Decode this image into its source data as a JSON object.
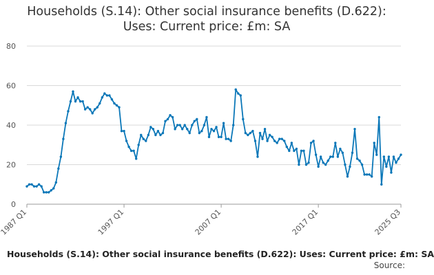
{
  "header": {
    "title_line1": "Households (S.14): Other social insurance benefits (D.622):",
    "title_line2": "Uses: Current price: £m: SA"
  },
  "footer": {
    "title": "Households (S.14): Other social insurance benefits (D.622): Uses: Current price: £m: SA",
    "source": "Source:"
  },
  "colors": {
    "series": "#0a77b8",
    "grid": "#d9d9d9",
    "axis": "#9a9a9a"
  },
  "chart_data": {
    "type": "line",
    "title": "Households (S.14): Other social insurance benefits (D.622): Uses: Current price: £m: SA",
    "xlabel": "",
    "ylabel": "",
    "ylim": [
      0,
      80
    ],
    "yticks": [
      0,
      20,
      40,
      60,
      80
    ],
    "xlim": [
      "1987 Q1",
      "2025 Q3"
    ],
    "xticks": [
      "1987 Q1",
      "1997 Q1",
      "2007 Q1",
      "2017 Q1",
      "2025 Q3"
    ],
    "grid": true,
    "legend": "none",
    "series": [
      {
        "x": [
          "1987 Q1",
          "1987 Q2",
          "1987 Q3",
          "1987 Q4",
          "1988 Q1",
          "1988 Q2",
          "1988 Q3",
          "1988 Q4",
          "1989 Q1",
          "1989 Q2",
          "1989 Q3",
          "1989 Q4",
          "1990 Q1",
          "1990 Q2",
          "1990 Q3",
          "1990 Q4",
          "1991 Q1",
          "1991 Q2",
          "1991 Q3",
          "1991 Q4",
          "1992 Q1",
          "1992 Q2",
          "1992 Q3",
          "1992 Q4",
          "1993 Q1",
          "1993 Q2",
          "1993 Q3",
          "1993 Q4",
          "1994 Q1",
          "1994 Q2",
          "1994 Q3",
          "1994 Q4",
          "1995 Q1",
          "1995 Q2",
          "1995 Q3",
          "1995 Q4",
          "1996 Q1",
          "1996 Q2",
          "1996 Q3",
          "1996 Q4",
          "1997 Q1",
          "1997 Q2",
          "1997 Q3",
          "1997 Q4",
          "1998 Q1",
          "1998 Q2",
          "1998 Q3",
          "1998 Q4",
          "1999 Q1",
          "1999 Q2",
          "1999 Q3",
          "1999 Q4",
          "2000 Q1",
          "2000 Q2",
          "2000 Q3",
          "2000 Q4",
          "2001 Q1",
          "2001 Q2",
          "2001 Q3",
          "2001 Q4",
          "2002 Q1",
          "2002 Q2",
          "2002 Q3",
          "2002 Q4",
          "2003 Q1",
          "2003 Q2",
          "2003 Q3",
          "2003 Q4",
          "2004 Q1",
          "2004 Q2",
          "2004 Q3",
          "2004 Q4",
          "2005 Q1",
          "2005 Q2",
          "2005 Q3",
          "2005 Q4",
          "2006 Q1",
          "2006 Q2",
          "2006 Q3",
          "2006 Q4",
          "2007 Q1",
          "2007 Q2",
          "2007 Q3",
          "2007 Q4",
          "2008 Q1",
          "2008 Q2",
          "2008 Q3",
          "2008 Q4",
          "2009 Q1",
          "2009 Q2",
          "2009 Q3",
          "2009 Q4",
          "2010 Q1",
          "2010 Q2",
          "2010 Q3",
          "2010 Q4",
          "2011 Q1",
          "2011 Q2",
          "2011 Q3",
          "2011 Q4",
          "2012 Q1",
          "2012 Q2",
          "2012 Q3",
          "2012 Q4",
          "2013 Q1",
          "2013 Q2",
          "2013 Q3",
          "2013 Q4",
          "2014 Q1",
          "2014 Q2",
          "2014 Q3",
          "2014 Q4",
          "2015 Q1",
          "2015 Q2",
          "2015 Q3",
          "2015 Q4",
          "2016 Q1",
          "2016 Q2",
          "2016 Q3",
          "2016 Q4",
          "2017 Q1",
          "2017 Q2",
          "2017 Q3",
          "2017 Q4",
          "2018 Q1",
          "2018 Q2",
          "2018 Q3",
          "2018 Q4",
          "2019 Q1",
          "2019 Q2",
          "2019 Q3",
          "2019 Q4",
          "2020 Q1",
          "2020 Q2",
          "2020 Q3",
          "2020 Q4",
          "2021 Q1",
          "2021 Q2",
          "2021 Q3",
          "2021 Q4",
          "2022 Q1",
          "2022 Q2",
          "2022 Q3",
          "2022 Q4",
          "2023 Q1",
          "2023 Q2",
          "2023 Q3",
          "2023 Q4",
          "2024 Q1",
          "2024 Q2",
          "2024 Q3",
          "2024 Q4",
          "2025 Q1",
          "2025 Q2",
          "2025 Q3"
        ],
        "values": [
          9,
          10,
          10,
          9,
          9,
          10,
          9,
          6,
          6,
          6,
          7,
          8,
          11,
          18,
          24,
          33,
          41,
          47,
          52,
          57,
          52,
          54,
          52,
          52,
          48,
          49,
          48,
          46,
          48,
          49,
          51,
          54,
          56,
          55,
          55,
          53,
          51,
          50,
          49,
          37,
          37,
          32,
          29,
          27,
          27,
          23,
          30,
          35,
          33,
          32,
          35,
          39,
          38,
          35,
          37,
          35,
          36,
          42,
          43,
          45,
          44,
          38,
          40,
          40,
          38,
          40,
          38,
          36,
          40,
          42,
          43,
          36,
          37,
          40,
          44,
          34,
          38,
          37,
          39,
          34,
          34,
          41,
          33,
          33,
          32,
          40,
          58,
          56,
          55,
          43,
          36,
          35,
          36,
          37,
          32,
          24,
          36,
          33,
          38,
          32,
          35,
          34,
          32,
          31,
          33,
          33,
          32,
          29,
          27,
          31,
          27,
          28,
          20,
          27,
          27,
          20,
          21,
          31,
          32,
          25,
          19,
          24,
          21,
          20,
          22,
          24,
          24,
          31,
          24,
          28,
          26,
          20,
          14,
          19,
          26,
          38,
          23,
          22,
          20,
          15,
          15,
          15,
          14,
          31,
          25,
          44,
          10,
          24,
          19,
          24,
          16,
          24,
          21,
          23,
          25
        ]
      }
    ]
  }
}
